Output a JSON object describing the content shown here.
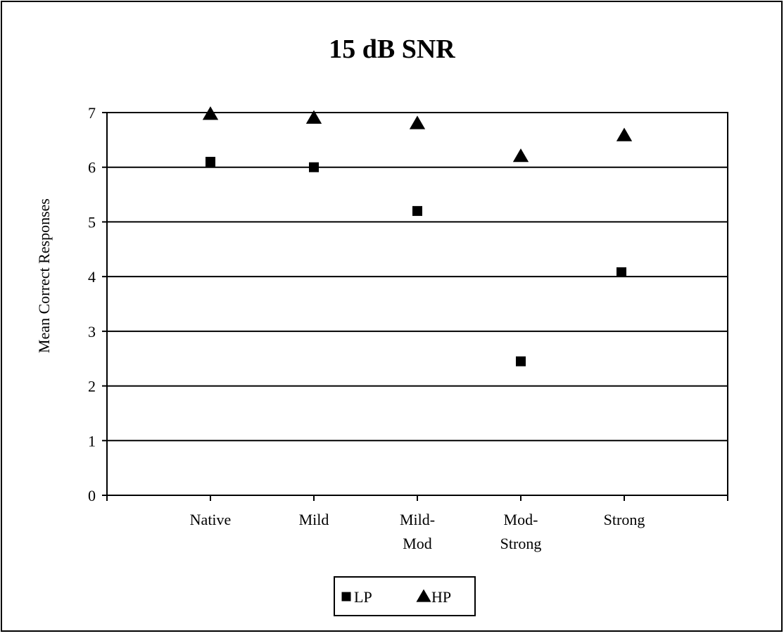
{
  "chart_data": {
    "type": "scatter",
    "title": "15 dB SNR",
    "xlabel": "",
    "ylabel": "Mean Correct Responses",
    "categories": [
      [
        "Native"
      ],
      [
        "Mild"
      ],
      [
        "Mild-",
        "Mod"
      ],
      [
        "Mod-",
        "Strong"
      ],
      [
        "Strong"
      ]
    ],
    "ylim": [
      0,
      7
    ],
    "yticks": [
      "0",
      "1",
      "2",
      "3",
      "4",
      "5",
      "6",
      "7"
    ],
    "grid": true,
    "legend_position": "bottom",
    "series": [
      {
        "name": "LP",
        "marker": "square",
        "color": "#000000",
        "values": [
          6.1,
          6.0,
          5.2,
          2.45,
          4.08
        ]
      },
      {
        "name": "HP",
        "marker": "triangle",
        "color": "#000000",
        "values": [
          6.97,
          6.9,
          6.8,
          6.2,
          6.58
        ]
      }
    ]
  }
}
